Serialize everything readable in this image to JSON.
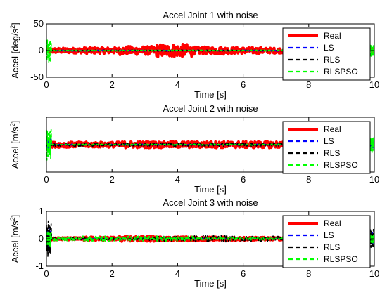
{
  "chart_data": [
    {
      "type": "line",
      "title": "Accel Joint 1 with noise",
      "xlabel": "Time [s]",
      "ylabel_base": "Accel [deg/s",
      "ylabel_exp": "2",
      "ylabel_tail": "]",
      "xlim": [
        0,
        10
      ],
      "ylim": [
        -50,
        50
      ],
      "xticks": [
        0,
        2,
        4,
        6,
        8,
        10
      ],
      "yticks": [
        -50,
        0,
        50
      ],
      "legend_position": "top-right",
      "series": [
        {
          "name": "Real",
          "color": "#ff0000",
          "style": "solid",
          "noise": [
            5,
            6,
            8,
            12,
            7,
            6,
            5,
            4,
            5
          ],
          "spike": 0
        },
        {
          "name": "LS",
          "color": "#0000ff",
          "style": "dashed",
          "noise": [
            1,
            1,
            1,
            1,
            1,
            1,
            1,
            1,
            1
          ],
          "spike": 0
        },
        {
          "name": "RLS",
          "color": "#000000",
          "style": "dashed",
          "noise": [
            1,
            1,
            1,
            1,
            1,
            1,
            1,
            1,
            1
          ],
          "spike": 0
        },
        {
          "name": "RLSPSO",
          "color": "#00ff00",
          "style": "dashed",
          "noise": [
            1,
            1,
            1,
            1,
            1,
            1,
            1,
            1,
            1
          ],
          "spike": 22
        }
      ]
    },
    {
      "type": "line",
      "title": "Accel Joint 2 with noise",
      "xlabel": "Time [s]",
      "ylabel_base": "Accel [m/s",
      "ylabel_exp": "2",
      "ylabel_tail": "]",
      "xlim": [
        0,
        10
      ],
      "ylim": [
        -0.25,
        0.25
      ],
      "xticks": [
        0,
        2,
        4,
        6,
        8,
        10
      ],
      "yticks": [],
      "legend_position": "top-right",
      "series": [
        {
          "name": "Real",
          "color": "#ff0000",
          "style": "solid",
          "noise": [
            0.025,
            0.025,
            0.03,
            0.03,
            0.03,
            0.03,
            0.03,
            0.03,
            0.03
          ],
          "spike": 0
        },
        {
          "name": "LS",
          "color": "#0000ff",
          "style": "dashed",
          "noise": [
            0.005,
            0.005,
            0.005,
            0.005,
            0.005,
            0.005,
            0.005,
            0.005,
            0.005
          ],
          "spike": 0.06
        },
        {
          "name": "RLS",
          "color": "#000000",
          "style": "dashed",
          "noise": [
            0.015,
            0.015,
            0.015,
            0.015,
            0.015,
            0.015,
            0.015,
            0.015,
            0.015
          ],
          "spike": 0
        },
        {
          "name": "RLSPSO",
          "color": "#00ff00",
          "style": "dashed",
          "noise": [
            0.005,
            0.005,
            0.005,
            0.005,
            0.005,
            0.005,
            0.005,
            0.005,
            0.005
          ],
          "spike": 0.15
        }
      ]
    },
    {
      "type": "line",
      "title": "Accel Joint 3 with noise",
      "xlabel": "Time [s]",
      "ylabel_base": "Accel [m/s",
      "ylabel_exp": "2",
      "ylabel_tail": "]",
      "xlim": [
        0,
        10
      ],
      "ylim": [
        -1,
        1
      ],
      "xticks": [
        0,
        2,
        4,
        6,
        8,
        10
      ],
      "yticks": [
        -1,
        0,
        1
      ],
      "legend_position": "top-right",
      "series": [
        {
          "name": "Real",
          "color": "#ff0000",
          "style": "solid",
          "noise": [
            0.05,
            0.07,
            0.1,
            0.08,
            0.07,
            0.06,
            0.05,
            0.05,
            0.05
          ],
          "spike": 0
        },
        {
          "name": "LS",
          "color": "#0000ff",
          "style": "dashed",
          "noise": [
            0.02,
            0.02,
            0.02,
            0.02,
            0.02,
            0.02,
            0.02,
            0.02,
            0.02
          ],
          "spike": 0.5
        },
        {
          "name": "RLS",
          "color": "#000000",
          "style": "dashed",
          "noise": [
            0.05,
            0.05,
            0.06,
            0.1,
            0.12,
            0.1,
            0.1,
            0.09,
            0.12
          ],
          "spike": 0.7
        },
        {
          "name": "RLSPSO",
          "color": "#00ff00",
          "style": "dashed",
          "noise": [
            0.08,
            0.1,
            0.1,
            0.1,
            0.05,
            0.05,
            0.04,
            0.04,
            0.04
          ],
          "spike": 0.3
        }
      ]
    }
  ]
}
